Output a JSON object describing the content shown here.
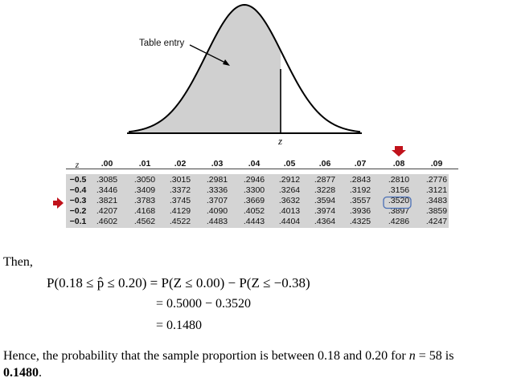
{
  "figure": {
    "table_entry_label": "Table entry",
    "z_label": "z"
  },
  "z_table": {
    "corner_label": "z",
    "columns": [
      ".00",
      ".01",
      ".02",
      ".03",
      ".04",
      ".05",
      ".06",
      ".07",
      ".08",
      ".09"
    ],
    "rows": [
      {
        "z": "−0.5",
        "values": [
          ".3085",
          ".3050",
          ".3015",
          ".2981",
          ".2946",
          ".2912",
          ".2877",
          ".2843",
          ".2810",
          ".2776"
        ]
      },
      {
        "z": "−0.4",
        "values": [
          ".3446",
          ".3409",
          ".3372",
          ".3336",
          ".3300",
          ".3264",
          ".3228",
          ".3192",
          ".3156",
          ".3121"
        ]
      },
      {
        "z": "−0.3",
        "values": [
          ".3821",
          ".3783",
          ".3745",
          ".3707",
          ".3669",
          ".3632",
          ".3594",
          ".3557",
          ".3520",
          ".3483"
        ]
      },
      {
        "z": "−0.2",
        "values": [
          ".4207",
          ".4168",
          ".4129",
          ".4090",
          ".4052",
          ".4013",
          ".3974",
          ".3936",
          ".3897",
          ".3859"
        ]
      },
      {
        "z": "−0.1",
        "values": [
          ".4602",
          ".4562",
          ".4522",
          ".4483",
          ".4443",
          ".4404",
          ".4364",
          ".4325",
          ".4286",
          ".4247"
        ]
      }
    ],
    "highlight_value": ".3520",
    "arrow_color": "#c0121b",
    "highlight_color": "#4a6fb5"
  },
  "solution": {
    "then": "Then,",
    "line1": "P(0.18 ≤ p̂ ≤ 0.20) = P(Z ≤ 0.00) − P(Z ≤ −0.38)",
    "line2": "= 0.5000 − 0.3520",
    "line3": "= 0.1480",
    "conclusion_prefix": "Hence, the probability that the sample proportion is between 0.18 and 0.20 for ",
    "conclusion_n": "n",
    "conclusion_mid": " = 58 is",
    "conclusion_answer": "0.1480",
    "conclusion_end": "."
  }
}
